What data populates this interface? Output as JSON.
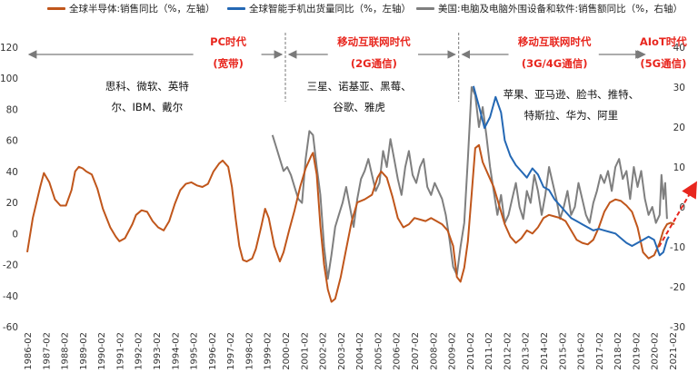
{
  "chart_data": {
    "type": "line",
    "title": "",
    "legend": [
      {
        "name": "全球半导体:销售同比（%，左轴）",
        "color": "#C0561B"
      },
      {
        "name": "全球智能手机出货量同比（%，左轴）",
        "color": "#2468B4"
      },
      {
        "name": "美国:电脑及电脑外围设备和软件:销售额同比（%，右轴）",
        "color": "#7F7F7F"
      }
    ],
    "y_left": {
      "min": -60,
      "max": 120,
      "ticks": [
        120,
        100,
        80,
        60,
        40,
        20,
        0,
        -20,
        -40,
        -60
      ]
    },
    "y_right": {
      "min": -30,
      "max": 40,
      "ticks": [
        40,
        30,
        20,
        10,
        0,
        -10,
        -20,
        -30
      ]
    },
    "x_ticks": [
      "1986-02",
      "1987-02",
      "1988-02",
      "1989-02",
      "1990-02",
      "1991-02",
      "1992-02",
      "1993-02",
      "1994-02",
      "1995-02",
      "1996-02",
      "1997-02",
      "1998-02",
      "1999-02",
      "2000-02",
      "2001-02",
      "2002-02",
      "2003-02",
      "2004-02",
      "2005-02",
      "2006-02",
      "2007-02",
      "2008-02",
      "2009-02",
      "2010-02",
      "2011-02",
      "2012-02",
      "2013-02",
      "2014-02",
      "2015-02",
      "2016-02",
      "2017-02",
      "2018-02",
      "2019-02",
      "2020-02",
      "2021-02"
    ],
    "eras": [
      {
        "title": "PC时代",
        "subtitle": "(宽带)",
        "companies": [
          "思科、微软、英特",
          "尔、IBM、戴尔"
        ]
      },
      {
        "title": "移动互联网时代",
        "subtitle": "(2G通信)",
        "companies": [
          "三星、诺基亚、黑莓、",
          "谷歌、雅虎"
        ]
      },
      {
        "title": "移动互联网时代",
        "subtitle": "(3G/4G通信)",
        "companies": [
          "苹果、亚马逊、脸书、推特、",
          "特斯拉、华为、阿里"
        ]
      },
      {
        "title": "AIoT时代",
        "subtitle": "(5G通信)",
        "companies": []
      }
    ],
    "divider_years": [
      2000.1,
      2009.5
    ],
    "series": [
      {
        "name": "全球半导体:销售同比",
        "axis": "left",
        "color": "#C0561B",
        "points": [
          [
            1986.1,
            -12
          ],
          [
            1986.4,
            10
          ],
          [
            1986.8,
            30
          ],
          [
            1987.0,
            39
          ],
          [
            1987.3,
            33
          ],
          [
            1987.6,
            22
          ],
          [
            1987.9,
            18
          ],
          [
            1988.2,
            18
          ],
          [
            1988.5,
            28
          ],
          [
            1988.7,
            40
          ],
          [
            1988.9,
            43
          ],
          [
            1989.1,
            42
          ],
          [
            1989.3,
            40
          ],
          [
            1989.6,
            38
          ],
          [
            1989.9,
            29
          ],
          [
            1990.2,
            16
          ],
          [
            1990.6,
            4
          ],
          [
            1990.9,
            -2
          ],
          [
            1991.1,
            -5
          ],
          [
            1991.4,
            -3
          ],
          [
            1991.8,
            6
          ],
          [
            1992.0,
            12
          ],
          [
            1992.3,
            15
          ],
          [
            1992.6,
            14
          ],
          [
            1992.9,
            8
          ],
          [
            1993.2,
            4
          ],
          [
            1993.5,
            2
          ],
          [
            1993.8,
            8
          ],
          [
            1994.1,
            19
          ],
          [
            1994.4,
            28
          ],
          [
            1994.7,
            32
          ],
          [
            1995.0,
            33
          ],
          [
            1995.3,
            31
          ],
          [
            1995.6,
            30
          ],
          [
            1995.9,
            32
          ],
          [
            1996.2,
            40
          ],
          [
            1996.5,
            45
          ],
          [
            1996.7,
            47
          ],
          [
            1997.0,
            43
          ],
          [
            1997.2,
            30
          ],
          [
            1997.4,
            10
          ],
          [
            1997.6,
            -8
          ],
          [
            1997.8,
            -17
          ],
          [
            1998.0,
            -18
          ],
          [
            1998.3,
            -16
          ],
          [
            1998.5,
            -10
          ],
          [
            1998.8,
            5
          ],
          [
            1999.0,
            16
          ],
          [
            1999.2,
            10
          ],
          [
            1999.5,
            -8
          ],
          [
            1999.8,
            -18
          ],
          [
            2000.0,
            -12
          ],
          [
            2000.3,
            2
          ],
          [
            2000.6,
            15
          ],
          [
            2000.9,
            30
          ],
          [
            2001.2,
            42
          ],
          [
            2001.5,
            50
          ],
          [
            2001.6,
            52
          ],
          [
            2001.8,
            38
          ],
          [
            2002.0,
            5
          ],
          [
            2002.2,
            -20
          ],
          [
            2002.4,
            -36
          ],
          [
            2002.6,
            -44
          ],
          [
            2002.8,
            -42
          ],
          [
            2003.1,
            -28
          ],
          [
            2003.4,
            -10
          ],
          [
            2003.7,
            8
          ],
          [
            2004.0,
            20
          ],
          [
            2004.4,
            22
          ],
          [
            2004.8,
            25
          ],
          [
            2005.1,
            36
          ],
          [
            2005.3,
            40
          ],
          [
            2005.6,
            36
          ],
          [
            2005.9,
            24
          ],
          [
            2006.2,
            10
          ],
          [
            2006.5,
            4
          ],
          [
            2006.8,
            6
          ],
          [
            2007.1,
            10
          ],
          [
            2007.4,
            9
          ],
          [
            2007.7,
            8
          ],
          [
            2008.0,
            10
          ],
          [
            2008.3,
            8
          ],
          [
            2008.6,
            6
          ],
          [
            2008.9,
            2
          ],
          [
            2009.2,
            -8
          ],
          [
            2009.4,
            -28
          ],
          [
            2009.6,
            -31
          ],
          [
            2009.8,
            -22
          ],
          [
            2010.0,
            -5
          ],
          [
            2010.2,
            25
          ],
          [
            2010.4,
            55
          ],
          [
            2010.6,
            57
          ],
          [
            2010.8,
            46
          ],
          [
            2011.1,
            38
          ],
          [
            2011.4,
            30
          ],
          [
            2011.7,
            18
          ],
          [
            2012.0,
            6
          ],
          [
            2012.3,
            -2
          ],
          [
            2012.6,
            -6
          ],
          [
            2012.9,
            -3
          ],
          [
            2013.2,
            2
          ],
          [
            2013.5,
            0
          ],
          [
            2013.8,
            4
          ],
          [
            2014.1,
            10
          ],
          [
            2014.4,
            12
          ],
          [
            2014.7,
            11
          ],
          [
            2015.0,
            10
          ],
          [
            2015.3,
            8
          ],
          [
            2015.6,
            2
          ],
          [
            2015.9,
            -4
          ],
          [
            2016.2,
            -6
          ],
          [
            2016.5,
            -7
          ],
          [
            2016.8,
            -4
          ],
          [
            2017.1,
            4
          ],
          [
            2017.4,
            14
          ],
          [
            2017.7,
            20
          ],
          [
            2018.0,
            22
          ],
          [
            2018.3,
            21
          ],
          [
            2018.6,
            18
          ],
          [
            2018.9,
            14
          ],
          [
            2019.2,
            4
          ],
          [
            2019.5,
            -12
          ],
          [
            2019.8,
            -16
          ],
          [
            2020.1,
            -14
          ],
          [
            2020.4,
            -6
          ],
          [
            2020.6,
            2
          ],
          [
            2020.8,
            6
          ],
          [
            2021.0,
            7
          ],
          [
            2021.2,
            6
          ]
        ]
      },
      {
        "name": "全球智能手机出货量同比",
        "axis": "left",
        "color": "#2468B4",
        "points": [
          [
            2010.3,
            95
          ],
          [
            2010.6,
            82
          ],
          [
            2010.9,
            68
          ],
          [
            2011.2,
            75
          ],
          [
            2011.5,
            88
          ],
          [
            2011.8,
            78
          ],
          [
            2012.0,
            60
          ],
          [
            2012.3,
            50
          ],
          [
            2012.6,
            44
          ],
          [
            2012.9,
            40
          ],
          [
            2013.2,
            36
          ],
          [
            2013.5,
            42
          ],
          [
            2013.8,
            38
          ],
          [
            2014.1,
            30
          ],
          [
            2014.4,
            28
          ],
          [
            2014.7,
            22
          ],
          [
            2015.0,
            18
          ],
          [
            2015.3,
            14
          ],
          [
            2015.6,
            10
          ],
          [
            2015.9,
            8
          ],
          [
            2016.2,
            6
          ],
          [
            2016.5,
            4
          ],
          [
            2016.8,
            2
          ],
          [
            2017.1,
            3
          ],
          [
            2017.4,
            2
          ],
          [
            2017.7,
            1
          ],
          [
            2018.0,
            0
          ],
          [
            2018.3,
            -3
          ],
          [
            2018.6,
            -6
          ],
          [
            2018.9,
            -8
          ],
          [
            2019.2,
            -6
          ],
          [
            2019.5,
            -4
          ],
          [
            2019.8,
            -2
          ],
          [
            2020.1,
            -4
          ],
          [
            2020.4,
            -14
          ],
          [
            2020.6,
            -12
          ],
          [
            2020.8,
            -4
          ],
          [
            2020.9,
            -2
          ]
        ]
      },
      {
        "name": "美国:电脑及电脑外围设备和软件:销售额同比",
        "axis": "right",
        "color": "#7F7F7F",
        "points": [
          [
            1999.4,
            18
          ],
          [
            1999.6,
            15
          ],
          [
            1999.8,
            12
          ],
          [
            2000.0,
            9
          ],
          [
            2000.2,
            10
          ],
          [
            2000.4,
            8
          ],
          [
            2000.6,
            5
          ],
          [
            2000.8,
            2
          ],
          [
            2001.0,
            1
          ],
          [
            2001.2,
            12
          ],
          [
            2001.4,
            19
          ],
          [
            2001.6,
            18
          ],
          [
            2001.8,
            10
          ],
          [
            2002.0,
            3
          ],
          [
            2002.2,
            -10
          ],
          [
            2002.4,
            -18
          ],
          [
            2002.6,
            -12
          ],
          [
            2002.8,
            -5
          ],
          [
            2003.0,
            -2
          ],
          [
            2003.2,
            1
          ],
          [
            2003.4,
            5
          ],
          [
            2003.6,
            0
          ],
          [
            2003.8,
            -5
          ],
          [
            2004.0,
            2
          ],
          [
            2004.2,
            7
          ],
          [
            2004.4,
            9
          ],
          [
            2004.6,
            12
          ],
          [
            2004.8,
            8
          ],
          [
            2005.0,
            4
          ],
          [
            2005.2,
            6
          ],
          [
            2005.4,
            14
          ],
          [
            2005.6,
            10
          ],
          [
            2005.8,
            17
          ],
          [
            2006.0,
            12
          ],
          [
            2006.2,
            7
          ],
          [
            2006.4,
            3
          ],
          [
            2006.6,
            10
          ],
          [
            2006.8,
            14
          ],
          [
            2007.0,
            8
          ],
          [
            2007.2,
            6
          ],
          [
            2007.4,
            10
          ],
          [
            2007.6,
            12
          ],
          [
            2007.8,
            5
          ],
          [
            2008.0,
            3
          ],
          [
            2008.2,
            6
          ],
          [
            2008.4,
            4
          ],
          [
            2008.6,
            2
          ],
          [
            2008.8,
            -2
          ],
          [
            2009.0,
            -8
          ],
          [
            2009.2,
            -15
          ],
          [
            2009.4,
            -17
          ],
          [
            2009.6,
            -10
          ],
          [
            2009.8,
            -4
          ],
          [
            2010.0,
            12
          ],
          [
            2010.2,
            30
          ],
          [
            2010.4,
            28
          ],
          [
            2010.6,
            20
          ],
          [
            2010.8,
            25
          ],
          [
            2011.0,
            18
          ],
          [
            2011.2,
            10
          ],
          [
            2011.4,
            4
          ],
          [
            2011.6,
            -2
          ],
          [
            2011.8,
            3
          ],
          [
            2012.0,
            -4
          ],
          [
            2012.2,
            -2
          ],
          [
            2012.4,
            2
          ],
          [
            2012.6,
            6
          ],
          [
            2012.8,
            0
          ],
          [
            2013.0,
            -3
          ],
          [
            2013.2,
            4
          ],
          [
            2013.4,
            1
          ],
          [
            2013.6,
            8
          ],
          [
            2013.8,
            4
          ],
          [
            2014.0,
            -2
          ],
          [
            2014.2,
            3
          ],
          [
            2014.4,
            10
          ],
          [
            2014.6,
            6
          ],
          [
            2014.8,
            2
          ],
          [
            2015.0,
            -3
          ],
          [
            2015.2,
            0
          ],
          [
            2015.4,
            4
          ],
          [
            2015.6,
            -2
          ],
          [
            2015.8,
            0
          ],
          [
            2016.0,
            6
          ],
          [
            2016.2,
            2
          ],
          [
            2016.4,
            -2
          ],
          [
            2016.6,
            -4
          ],
          [
            2016.8,
            1
          ],
          [
            2017.0,
            4
          ],
          [
            2017.2,
            8
          ],
          [
            2017.4,
            6
          ],
          [
            2017.6,
            9
          ],
          [
            2017.8,
            4
          ],
          [
            2018.0,
            10
          ],
          [
            2018.2,
            12
          ],
          [
            2018.4,
            7
          ],
          [
            2018.6,
            9
          ],
          [
            2018.8,
            2
          ],
          [
            2019.0,
            10
          ],
          [
            2019.2,
            5
          ],
          [
            2019.4,
            9
          ],
          [
            2019.6,
            2
          ],
          [
            2019.8,
            -2
          ],
          [
            2020.0,
            0
          ],
          [
            2020.2,
            -4
          ],
          [
            2020.4,
            -2
          ],
          [
            2020.5,
            8
          ],
          [
            2020.6,
            2
          ],
          [
            2020.7,
            6
          ],
          [
            2020.8,
            -3
          ]
        ]
      }
    ]
  }
}
